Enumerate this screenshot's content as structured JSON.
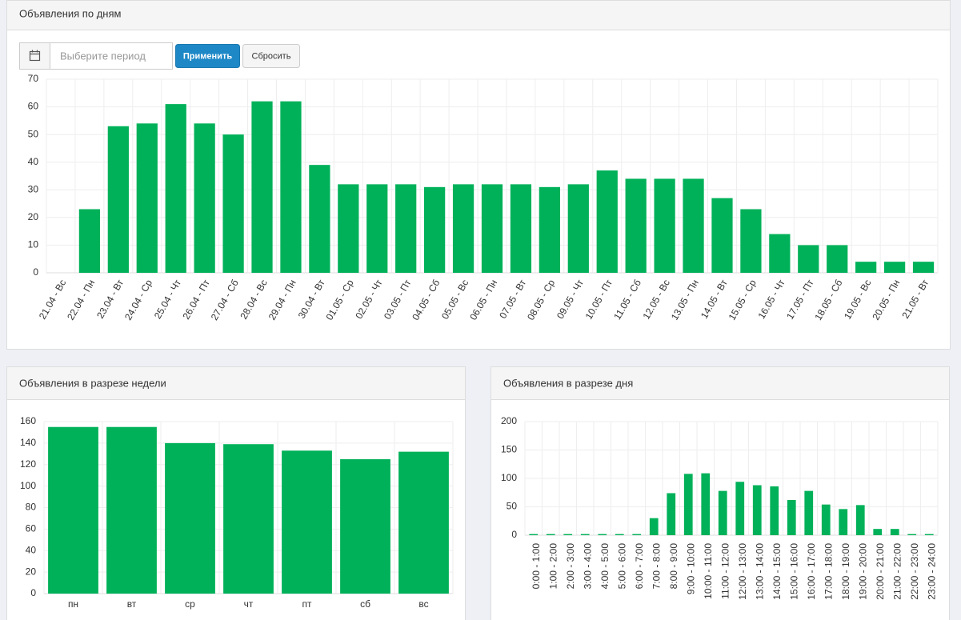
{
  "controls": {
    "placeholder": "Выберите период",
    "apply": "Применить",
    "reset": "Сбросить"
  },
  "chart_data": [
    {
      "type": "bar",
      "title": "Объявления по дням",
      "color": "#00b159",
      "grid": true,
      "categories": [
        "21.04 - Вс",
        "22.04 - Пн",
        "23.04 - Вт",
        "24.04 - Ср",
        "25.04 - Чт",
        "26.04 - Пт",
        "27.04 - Сб",
        "28.04 - Вс",
        "29.04 - Пн",
        "30.04 - Вт",
        "01.05 - Ср",
        "02.05 - Чт",
        "03.05 - Пт",
        "04.05 - Сб",
        "05.05 - Вс",
        "06.05 - Пн",
        "07.05 - Вт",
        "08.05 - Ср",
        "09.05 - Чт",
        "10.05 - Пт",
        "11.05 - Сб",
        "12.05 - Вс",
        "13.05 - Пн",
        "14.05 - Вт",
        "15.05 - Ср",
        "16.05 - Чт",
        "17.05 - Пт",
        "18.05 - Сб",
        "19.05 - Вс",
        "20.05 - Пн",
        "21.05 - Вт"
      ],
      "values": [
        0,
        23,
        53,
        54,
        61,
        54,
        50,
        62,
        62,
        39,
        32,
        32,
        32,
        31,
        32,
        32,
        32,
        31,
        32,
        37,
        34,
        34,
        34,
        27,
        23,
        14,
        10,
        10,
        4,
        4,
        4
      ],
      "ylim": [
        0,
        70
      ],
      "yticks": [
        0,
        10,
        20,
        30,
        40,
        50,
        60,
        70
      ]
    },
    {
      "type": "bar",
      "title": "Объявления в разрезе недели",
      "color": "#00b159",
      "grid": true,
      "categories": [
        "пн",
        "вт",
        "ср",
        "чт",
        "пт",
        "сб",
        "вс"
      ],
      "values": [
        155,
        155,
        140,
        139,
        133,
        125,
        132
      ],
      "ylim": [
        0,
        160
      ],
      "yticks": [
        0,
        20,
        40,
        60,
        80,
        100,
        120,
        140,
        160
      ]
    },
    {
      "type": "bar",
      "title": "Объявления в разрезе дня",
      "color": "#00b159",
      "grid": true,
      "categories": [
        "0:00 - 1:00",
        "1:00 - 2:00",
        "2:00 - 3:00",
        "3:00 - 4:00",
        "4:00 - 5:00",
        "5:00 - 6:00",
        "6:00 - 7:00",
        "7:00 - 8:00",
        "8:00 - 9:00",
        "9:00 - 10:00",
        "10:00 - 11:00",
        "11:00 - 12:00",
        "12:00 - 13:00",
        "13:00 - 14:00",
        "14:00 - 15:00",
        "15:00 - 16:00",
        "16:00 - 17:00",
        "17:00 - 18:00",
        "18:00 - 19:00",
        "19:00 - 20:00",
        "20:00 - 21:00",
        "21:00 - 22:00",
        "22:00 - 23:00",
        "23:00 - 24:00"
      ],
      "values": [
        2,
        2,
        2,
        2,
        2,
        2,
        2,
        30,
        74,
        108,
        109,
        78,
        94,
        88,
        86,
        62,
        78,
        54,
        46,
        53,
        11,
        11,
        2,
        2
      ],
      "ylim": [
        0,
        200
      ],
      "yticks": [
        0,
        50,
        100,
        150,
        200
      ]
    }
  ]
}
